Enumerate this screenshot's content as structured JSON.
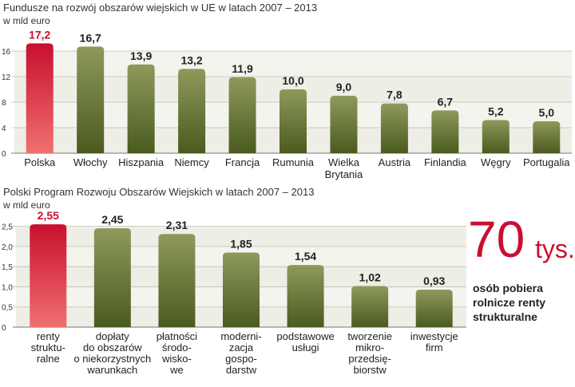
{
  "chart_data": [
    {
      "type": "bar",
      "title": "Fundusze na rozwój obszarów wiejskich w UE w latach 2007 – 2013",
      "ylabel": "w mld euro",
      "ylim": [
        0,
        18
      ],
      "yticks": [
        0,
        4,
        8,
        12,
        16
      ],
      "highlight_index": 0,
      "categories": [
        "Polska",
        "Włochy",
        "Hiszpania",
        "Niemcy",
        "Francja",
        "Rumunia",
        [
          "Wielka",
          "Brytania"
        ],
        "Austria",
        "Finlandia",
        "Węgry",
        "Portugalia"
      ],
      "values": [
        17.2,
        16.7,
        13.9,
        13.2,
        11.9,
        10.0,
        9.0,
        7.8,
        6.7,
        5.2,
        5.0
      ],
      "value_labels": [
        "17,2",
        "16,7",
        "13,9",
        "13,2",
        "11,9",
        "10,0",
        "9,0",
        "7,8",
        "6,7",
        "5,2",
        "5,0"
      ]
    },
    {
      "type": "bar",
      "title": "Polski Program Rozwoju Obszarów Wiejskich w latach 2007 – 2013",
      "ylabel": "w mld euro",
      "ylim": [
        0,
        2.75
      ],
      "yticks": [
        0,
        0.5,
        1.0,
        1.5,
        2.0,
        2.5
      ],
      "ytick_labels": [
        "0",
        "0,5",
        "1,0",
        "1,5",
        "2,0",
        "2,5"
      ],
      "highlight_index": 0,
      "categories": [
        [
          "renty",
          "struktu-",
          "ralne"
        ],
        [
          "dopłaty",
          "do obszarów",
          "o niekorzystnych",
          "warunkach"
        ],
        [
          "płatności",
          "środo-",
          "wisko-",
          "we"
        ],
        [
          "moderni-",
          "zacja",
          "gospo-",
          "darstw"
        ],
        [
          "podstawowe",
          "usługi"
        ],
        [
          "tworzenie",
          "mikro-",
          "przedsię-",
          "biorstw"
        ],
        [
          "inwestycje",
          "firm"
        ]
      ],
      "values": [
        2.55,
        2.45,
        2.31,
        1.85,
        1.54,
        1.02,
        0.93
      ],
      "value_labels": [
        "2,55",
        "2,45",
        "2,31",
        "1,85",
        "1,54",
        "1,02",
        "0,93"
      ]
    }
  ],
  "callout": {
    "number": "70",
    "unit": "tys.",
    "text": "osób pobiera rolnicze renty strukturalne"
  },
  "colors": {
    "bar_green_light": "#8e9a5c",
    "bar_green_dark": "#4b5a1f",
    "bar_red_light": "#f07070",
    "bar_red_dark": "#c8102e",
    "value_highlight": "#c8102e",
    "band_light": "#eeeee6",
    "band_dark": "#f4f4ee"
  }
}
